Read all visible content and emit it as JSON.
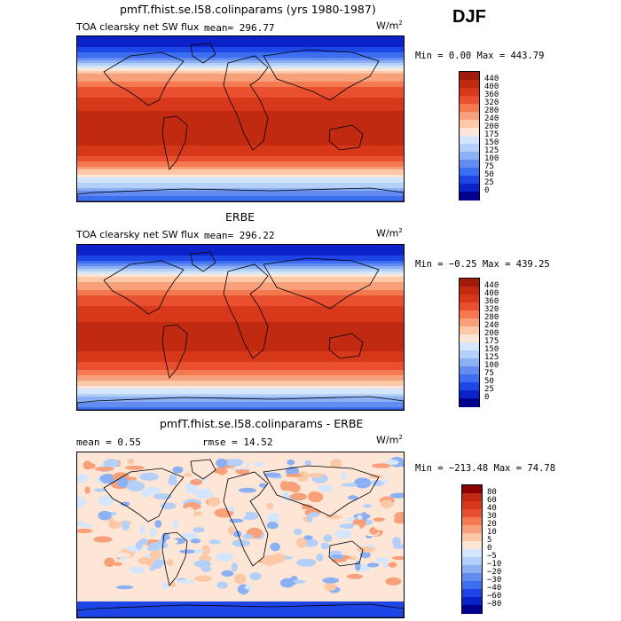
{
  "season": "DJF",
  "colors": {
    "ocean_land_outline": "#000000",
    "flux_scale": [
      "#00008b",
      "#0a22c8",
      "#1e46e6",
      "#3c6ef0",
      "#648cf0",
      "#8cb0f4",
      "#b4d0f8",
      "#d4e6fb",
      "#fde6d6",
      "#fbc8a8",
      "#f8a07a",
      "#f47850",
      "#e85030",
      "#d8381a",
      "#c02a10",
      "#a01c0a"
    ],
    "diff_scale": [
      "#00008b",
      "#0a22c8",
      "#1e46e6",
      "#3c6ef0",
      "#648cf0",
      "#8cb0f4",
      "#b4d0f8",
      "#d4e6fb",
      "#fde6d6",
      "#fbc8a8",
      "#f8a07a",
      "#f47850",
      "#e85030",
      "#d8381a",
      "#c02a10",
      "#8b0000"
    ]
  },
  "panels": [
    {
      "title": "pmfT.fhist.se.l58.colinparams (yrs 1980-1987)",
      "variable": "TOA clearsky net SW flux",
      "mean_text": "mean= 296.77",
      "units": "W/m",
      "units_sup": "2",
      "minmax_text": "Min =    0.00 Max = 443.79",
      "colorbar_labels": [
        "440",
        "400",
        "360",
        "320",
        "280",
        "240",
        "200",
        "175",
        "150",
        "125",
        "100",
        "75",
        "50",
        "25",
        "0"
      ]
    },
    {
      "title": "ERBE",
      "variable": "TOA clearsky net SW flux",
      "mean_text": "mean= 296.22",
      "units": "W/m",
      "units_sup": "2",
      "minmax_text": "Min =  −0.25 Max = 439.25",
      "colorbar_labels": [
        "440",
        "400",
        "360",
        "320",
        "280",
        "240",
        "200",
        "175",
        "150",
        "125",
        "100",
        "75",
        "50",
        "25",
        "0"
      ]
    },
    {
      "title": "pmfT.fhist.se.l58.colinparams - ERBE",
      "mean_text": "mean =    0.55",
      "rmse_text": "rmse =   14.52",
      "units": "W/m",
      "units_sup": "2",
      "minmax_text": "Min = −213.48 Max =  74.78",
      "colorbar_labels": [
        "80",
        "60",
        "40",
        "30",
        "20",
        "10",
        "5",
        "0",
        "−5",
        "−10",
        "−20",
        "−30",
        "−40",
        "−60",
        "−80"
      ]
    }
  ],
  "chart_data": [
    {
      "type": "heatmap",
      "title": "pmfT.fhist.se.l58.colinparams (yrs 1980-1987)",
      "subtitle": "TOA clearsky net SW flux",
      "mean": 296.77,
      "units": "W/m2",
      "min": 0.0,
      "max": 443.79,
      "levels": [
        0,
        25,
        50,
        75,
        100,
        125,
        150,
        175,
        200,
        240,
        280,
        320,
        360,
        400,
        440
      ],
      "zonal_profile_lat": [
        90,
        80,
        70,
        60,
        50,
        40,
        30,
        20,
        10,
        0,
        -10,
        -20,
        -30,
        -40,
        -50,
        -60,
        -70,
        -80,
        -90
      ],
      "zonal_profile_value": [
        0,
        10,
        60,
        140,
        230,
        290,
        340,
        370,
        400,
        410,
        415,
        420,
        400,
        360,
        300,
        200,
        150,
        90,
        60
      ]
    },
    {
      "type": "heatmap",
      "title": "ERBE",
      "subtitle": "TOA clearsky net SW flux",
      "mean": 296.22,
      "units": "W/m2",
      "min": -0.25,
      "max": 439.25,
      "levels": [
        0,
        25,
        50,
        75,
        100,
        125,
        150,
        175,
        200,
        240,
        280,
        320,
        360,
        400,
        440
      ],
      "zonal_profile_lat": [
        90,
        80,
        70,
        60,
        50,
        40,
        30,
        20,
        10,
        0,
        -10,
        -20,
        -30,
        -40,
        -50,
        -60,
        -70,
        -80,
        -90
      ],
      "zonal_profile_value": [
        0,
        20,
        70,
        150,
        230,
        290,
        340,
        370,
        395,
        405,
        410,
        415,
        395,
        355,
        300,
        230,
        160,
        100,
        60
      ]
    },
    {
      "type": "heatmap",
      "title": "pmfT.fhist.se.l58.colinparams - ERBE",
      "mean": 0.55,
      "rmse": 14.52,
      "units": "W/m2",
      "min": -213.48,
      "max": 74.78,
      "levels": [
        -80,
        -60,
        -40,
        -30,
        -20,
        -10,
        -5,
        0,
        5,
        10,
        20,
        30,
        40,
        60,
        80
      ]
    }
  ]
}
